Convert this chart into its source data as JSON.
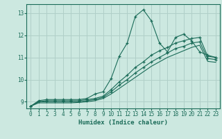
{
  "title": "",
  "xlabel": "Humidex (Indice chaleur)",
  "bg_color": "#cce8e0",
  "grid_color": "#b0cfc8",
  "line_color": "#1a6b58",
  "xlim": [
    -0.5,
    23.5
  ],
  "ylim": [
    8.7,
    13.4
  ],
  "yticks": [
    9,
    10,
    11,
    12,
    13
  ],
  "xticks": [
    0,
    1,
    2,
    3,
    4,
    5,
    6,
    7,
    8,
    9,
    10,
    11,
    12,
    13,
    14,
    15,
    16,
    17,
    18,
    19,
    20,
    21,
    22,
    23
  ],
  "lines": [
    {
      "x": [
        0,
        1,
        2,
        3,
        4,
        5,
        6,
        7,
        8,
        9,
        10,
        11,
        12,
        13,
        14,
        15,
        16,
        17,
        18,
        19,
        20,
        21,
        22,
        23
      ],
      "y": [
        8.8,
        9.05,
        9.1,
        9.1,
        9.1,
        9.1,
        9.1,
        9.15,
        9.35,
        9.45,
        10.05,
        11.05,
        11.65,
        12.85,
        13.15,
        12.65,
        11.65,
        11.25,
        11.9,
        12.05,
        11.75,
        11.25,
        11.1,
        11.0
      ],
      "marker": "+"
    },
    {
      "x": [
        0,
        1,
        2,
        3,
        4,
        5,
        6,
        7,
        8,
        9,
        10,
        11,
        12,
        13,
        14,
        15,
        16,
        17,
        18,
        19,
        20,
        21,
        22,
        23
      ],
      "y": [
        8.8,
        9.0,
        9.05,
        9.05,
        9.05,
        9.05,
        9.05,
        9.1,
        9.15,
        9.25,
        9.55,
        9.9,
        10.2,
        10.55,
        10.8,
        11.1,
        11.3,
        11.45,
        11.65,
        11.75,
        11.85,
        11.9,
        11.05,
        11.0
      ],
      "marker": "+"
    },
    {
      "x": [
        0,
        1,
        2,
        3,
        4,
        5,
        6,
        7,
        8,
        9,
        10,
        11,
        12,
        13,
        14,
        15,
        16,
        17,
        18,
        19,
        20,
        21,
        22,
        23
      ],
      "y": [
        8.8,
        9.0,
        9.0,
        9.0,
        9.0,
        9.0,
        9.0,
        9.05,
        9.1,
        9.2,
        9.45,
        9.75,
        10.0,
        10.3,
        10.55,
        10.8,
        11.0,
        11.2,
        11.4,
        11.5,
        11.65,
        11.7,
        10.95,
        10.9
      ],
      "marker": "+"
    },
    {
      "x": [
        0,
        1,
        2,
        3,
        4,
        5,
        6,
        7,
        8,
        9,
        10,
        11,
        12,
        13,
        14,
        15,
        16,
        17,
        18,
        19,
        20,
        21,
        22,
        23
      ],
      "y": [
        8.8,
        8.95,
        8.95,
        8.95,
        8.95,
        8.95,
        8.97,
        9.0,
        9.05,
        9.15,
        9.35,
        9.6,
        9.85,
        10.1,
        10.35,
        10.6,
        10.8,
        11.0,
        11.15,
        11.3,
        11.45,
        11.55,
        10.82,
        10.78
      ],
      "marker": null
    }
  ]
}
